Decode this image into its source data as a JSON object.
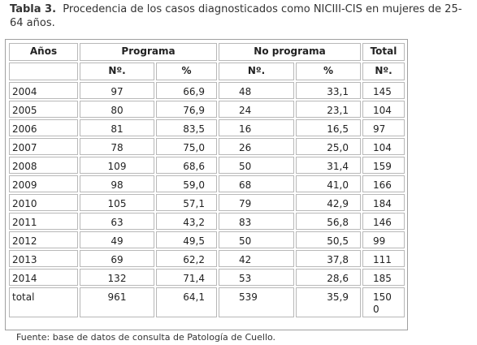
{
  "caption": {
    "label": "Tabla 3.",
    "text": "Procedencia de los casos diagnosticados como NICIII-CIS en mujeres de 25-64 años."
  },
  "table": {
    "header_top": {
      "years": "Años",
      "programa": "Programa",
      "no_programa": "No programa",
      "total": "Total"
    },
    "header_sub": {
      "n1": "Nº.",
      "p1": "%",
      "n2": "Nº.",
      "p2": "%",
      "total_n": "Nº."
    },
    "rows": [
      {
        "year": "2004",
        "n1": "97",
        "p1": "66,9",
        "n2": "48",
        "p2": "33,1",
        "total": "145"
      },
      {
        "year": "2005",
        "n1": "80",
        "p1": "76,9",
        "n2": "24",
        "p2": "23,1",
        "total": "104"
      },
      {
        "year": "2006",
        "n1": "81",
        "p1": "83,5",
        "n2": "16",
        "p2": "16,5",
        "total": "97"
      },
      {
        "year": "2007",
        "n1": "78",
        "p1": "75,0",
        "n2": "26",
        "p2": "25,0",
        "total": "104"
      },
      {
        "year": "2008",
        "n1": "109",
        "p1": "68,6",
        "n2": "50",
        "p2": "31,4",
        "total": "159"
      },
      {
        "year": "2009",
        "n1": "98",
        "p1": "59,0",
        "n2": "68",
        "p2": "41,0",
        "total": "166"
      },
      {
        "year": "2010",
        "n1": "105",
        "p1": "57,1",
        "n2": "79",
        "p2": "42,9",
        "total": "184"
      },
      {
        "year": "2011",
        "n1": "63",
        "p1": "43,2",
        "n2": "83",
        "p2": "56,8",
        "total": "146"
      },
      {
        "year": "2012",
        "n1": "49",
        "p1": "49,5",
        "n2": "50",
        "p2": "50,5",
        "total": "99"
      },
      {
        "year": "2013",
        "n1": "69",
        "p1": "62,2",
        "n2": "42",
        "p2": "37,8",
        "total": "111"
      },
      {
        "year": "2014",
        "n1": "132",
        "p1": "71,4",
        "n2": "53",
        "p2": "28,6",
        "total": "185"
      },
      {
        "year": "total",
        "n1": "961",
        "p1": "64,1",
        "n2": "539",
        "p2": "35,9",
        "total": "1500"
      }
    ]
  },
  "source": "Fuente: base de datos de consulta de Patología de Cuello."
}
